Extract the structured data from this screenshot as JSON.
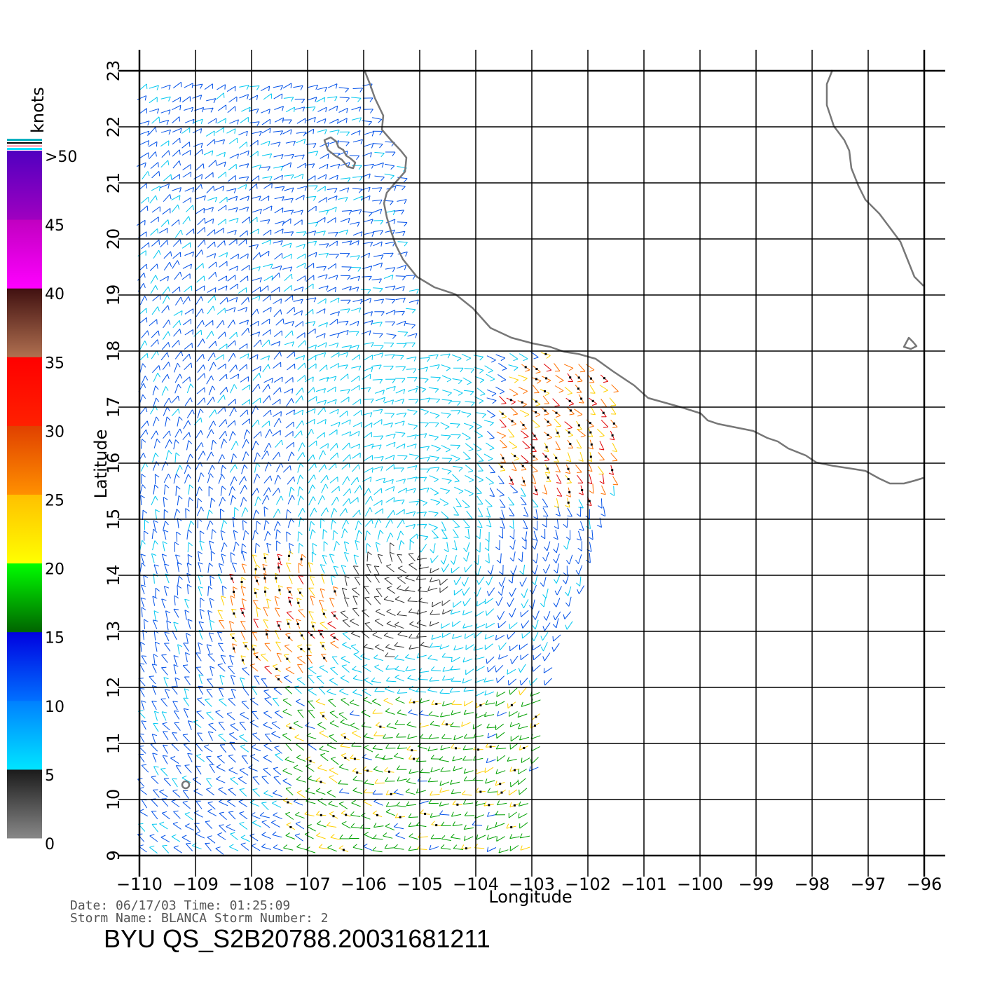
{
  "map": {
    "lon_labels": [
      "−110",
      "−109",
      "−108",
      "−107",
      "−106",
      "−105",
      "−104",
      "−103",
      "−102",
      "−101",
      "−100",
      "−99",
      "−98",
      "−97",
      "−96"
    ],
    "lat_labels": [
      "9",
      "10",
      "11",
      "12",
      "13",
      "14",
      "15",
      "16",
      "17",
      "18",
      "19",
      "20",
      "21",
      "22",
      "23"
    ],
    "lon_range": [
      -110,
      -96
    ],
    "lat_range": [
      9,
      23
    ],
    "xlabel": "Longitude",
    "ylabel": "Latitude",
    "coastline_color": "#777777",
    "grid_color": "#000000"
  },
  "legend": {
    "unit": "knots",
    "labels": [
      ">50",
      "45",
      "40",
      "35",
      "30",
      "25",
      "20",
      "15",
      "10",
      "5",
      "0"
    ],
    "bands": [
      {
        "from": 0,
        "to": 5,
        "colors": [
          "#888888",
          "#1a1a1a"
        ]
      },
      {
        "from": 5,
        "to": 10,
        "colors": [
          "#00e5ff",
          "#0080ff"
        ]
      },
      {
        "from": 10,
        "to": 15,
        "colors": [
          "#0070ff",
          "#0000e0"
        ]
      },
      {
        "from": 15,
        "to": 20,
        "colors": [
          "#006400",
          "#00ff00"
        ]
      },
      {
        "from": 20,
        "to": 25,
        "colors": [
          "#ffff00",
          "#ffc000"
        ]
      },
      {
        "from": 25,
        "to": 30,
        "colors": [
          "#ff9000",
          "#e04000"
        ]
      },
      {
        "from": 30,
        "to": 35,
        "colors": [
          "#ff2000",
          "#ff0000"
        ]
      },
      {
        "from": 35,
        "to": 40,
        "colors": [
          "#b07050",
          "#401010"
        ]
      },
      {
        "from": 40,
        "to": 45,
        "colors": [
          "#ff00ff",
          "#c000c0"
        ]
      },
      {
        "from": 45,
        "to": 50,
        "colors": [
          "#a000c0",
          "#5000c0"
        ]
      }
    ]
  },
  "footer": {
    "date_line": "Date: 06/17/03   Time: 01:25:09",
    "storm_line": "Storm  Name:  BLANCA    Storm  Number:  2",
    "file_id": "BYU  QS_S2B20788.20031681211"
  }
}
